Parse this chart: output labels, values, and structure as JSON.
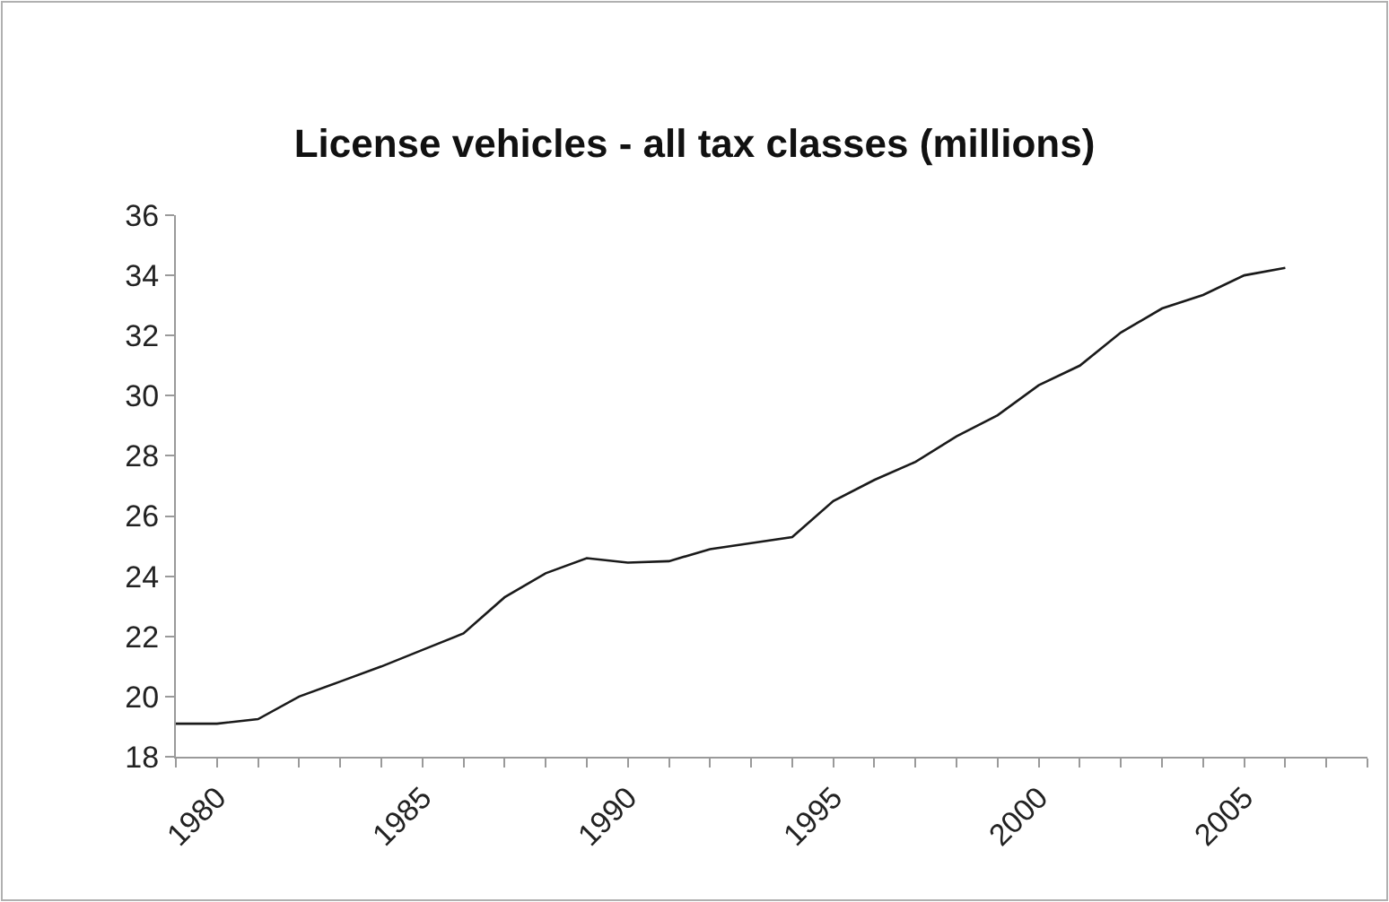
{
  "chart_data": {
    "type": "line",
    "title": "License vehicles - all tax classes (millions)",
    "x": [
      1979,
      1980,
      1981,
      1982,
      1983,
      1984,
      1985,
      1986,
      1987,
      1988,
      1989,
      1990,
      1991,
      1992,
      1993,
      1994,
      1995,
      1996,
      1997,
      1998,
      1999,
      2000,
      2001,
      2002,
      2003,
      2004,
      2005,
      2006
    ],
    "series": [
      {
        "color": "#1a1a1a",
        "values": [
          19.1,
          19.1,
          19.25,
          20.0,
          20.5,
          21.0,
          21.55,
          22.1,
          23.3,
          24.1,
          24.6,
          24.45,
          24.5,
          24.9,
          25.1,
          25.3,
          26.5,
          27.2,
          27.8,
          28.65,
          29.35,
          30.35,
          31.0,
          32.1,
          32.9,
          33.35,
          34.0,
          34.25
        ]
      }
    ],
    "xlim": [
      1979,
      2008
    ],
    "xticks": [
      {
        "value": 1979,
        "label": null
      },
      1980,
      {
        "value": 1981,
        "label": null
      },
      {
        "value": 1982,
        "label": null
      },
      {
        "value": 1983,
        "label": null
      },
      {
        "value": 1984,
        "label": null
      },
      1985,
      {
        "value": 1986,
        "label": null
      },
      {
        "value": 1987,
        "label": null
      },
      {
        "value": 1988,
        "label": null
      },
      {
        "value": 1989,
        "label": null
      },
      1990,
      {
        "value": 1991,
        "label": null
      },
      {
        "value": 1992,
        "label": null
      },
      {
        "value": 1993,
        "label": null
      },
      {
        "value": 1994,
        "label": null
      },
      1995,
      {
        "value": 1996,
        "label": null
      },
      {
        "value": 1997,
        "label": null
      },
      {
        "value": 1998,
        "label": null
      },
      {
        "value": 1999,
        "label": null
      },
      2000,
      {
        "value": 2001,
        "label": null
      },
      {
        "value": 2002,
        "label": null
      },
      {
        "value": 2003,
        "label": null
      },
      {
        "value": 2004,
        "label": null
      },
      2005,
      {
        "value": 2006,
        "label": null
      },
      {
        "value": 2007,
        "label": null
      },
      {
        "value": 2008,
        "label": null
      }
    ],
    "ylim": [
      18,
      36
    ],
    "yticks": [
      18,
      20,
      22,
      24,
      26,
      28,
      30,
      32,
      34,
      36
    ],
    "marker": "none",
    "line_style": "solid"
  }
}
